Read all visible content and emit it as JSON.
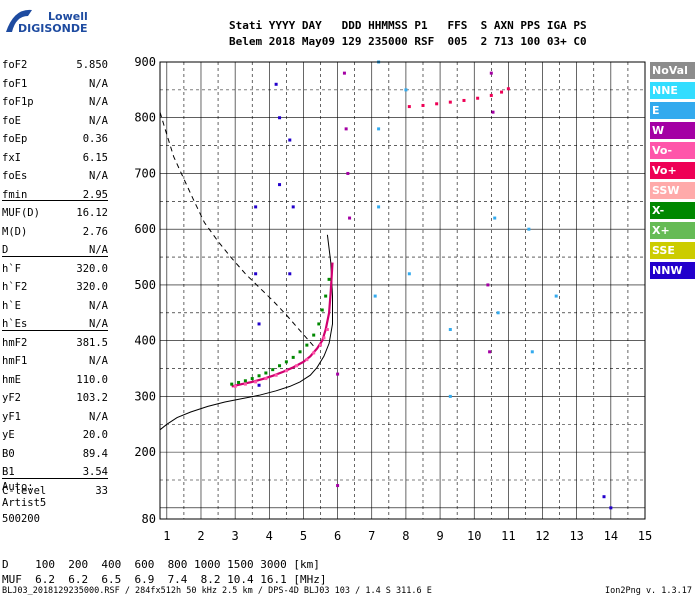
{
  "logo": {
    "line1": "Lowell",
    "line2": "DIGISONDE"
  },
  "header": {
    "row1": "Stati YYYY DAY   DDD HHMMSS P1   FFS  S AXN PPS IGA PS",
    "row2": "Belem 2018 May09 129 235000 RSF  005  2 713 100 03+ C0"
  },
  "params": [
    [
      {
        "k": "foF2",
        "v": "5.850"
      },
      {
        "k": "foF1",
        "v": "N/A"
      },
      {
        "k": "foF1p",
        "v": "N/A"
      },
      {
        "k": "foE",
        "v": "N/A"
      },
      {
        "k": "foEp",
        "v": "0.36"
      },
      {
        "k": "fxI",
        "v": "6.15"
      },
      {
        "k": "foEs",
        "v": "N/A"
      },
      {
        "k": "fmin",
        "v": "2.95"
      }
    ],
    [
      {
        "k": "MUF(D)",
        "v": "16.12"
      },
      {
        "k": "M(D)",
        "v": "2.76"
      },
      {
        "k": "D",
        "v": "N/A"
      }
    ],
    [
      {
        "k": "h`F",
        "v": "320.0"
      },
      {
        "k": "h`F2",
        "v": "320.0"
      },
      {
        "k": "h`E",
        "v": "N/A"
      },
      {
        "k": "h`Es",
        "v": "N/A"
      }
    ],
    [
      {
        "k": "hmF2",
        "v": "381.5"
      },
      {
        "k": "hmF1",
        "v": "N/A"
      },
      {
        "k": "hmE",
        "v": "110.0"
      },
      {
        "k": "yF2",
        "v": "103.2"
      },
      {
        "k": "yF1",
        "v": "N/A"
      },
      {
        "k": "yE",
        "v": "20.0"
      },
      {
        "k": "B0",
        "v": "89.4"
      },
      {
        "k": "B1",
        "v": "3.54"
      }
    ],
    [
      {
        "k": "C-level",
        "v": "33"
      }
    ]
  ],
  "footer": {
    "line1": "Auto:",
    "line2": "Artist5",
    "line3": "500200"
  },
  "legend": [
    {
      "label": "NoVal",
      "color": "#8c8c8c"
    },
    {
      "label": "NNE",
      "color": "#33ddff"
    },
    {
      "label": "E",
      "color": "#33aaee"
    },
    {
      "label": "W",
      "color": "#a400a4"
    },
    {
      "label": "Vo-",
      "color": "#ff55aa"
    },
    {
      "label": "Vo+",
      "color": "#ee0055"
    },
    {
      "label": "SSW",
      "color": "#ffaaaa"
    },
    {
      "label": "X-",
      "color": "#008800"
    },
    {
      "label": "X+",
      "color": "#66bb55"
    },
    {
      "label": "SSE",
      "color": "#cccc00"
    },
    {
      "label": "NNW",
      "color": "#2200cc"
    }
  ],
  "muf_table": {
    "row1": "D    100  200  400  600  800 1000 1500 3000 [km]",
    "row2": "MUF  6.2  6.2  6.5  6.9  7.4  8.2 10.4 16.1 [MHz]"
  },
  "fileinfo": "BLJ03_2018129235000.RSF / 284fx512h 50 kHz 2.5 km / DPS-4D BLJ03 103 / 1.4 S 311.6 E",
  "version": "Ion2Png v. 1.3.17",
  "chart_data": {
    "type": "scatter",
    "x_ticks": [
      1,
      2,
      3,
      4,
      5,
      6,
      7,
      8,
      9,
      10,
      11,
      12,
      13,
      14,
      15
    ],
    "y_ticks": [
      80,
      200,
      300,
      400,
      500,
      600,
      700,
      800,
      900
    ],
    "xlim": [
      0.8,
      15
    ],
    "ylim": [
      80,
      900
    ],
    "grid": true,
    "series": [
      {
        "name": "X-",
        "color": "#008800",
        "x": [
          2.9,
          3.1,
          3.3,
          3.5,
          3.7,
          3.9,
          4.1,
          4.3,
          4.5,
          4.7,
          4.9,
          5.1,
          5.3,
          5.45,
          5.55,
          5.65,
          5.75
        ],
        "y": [
          322,
          325,
          328,
          332,
          337,
          342,
          348,
          355,
          362,
          370,
          380,
          392,
          410,
          430,
          455,
          480,
          510
        ]
      },
      {
        "name": "Vo-",
        "color": "#ff55aa",
        "x": [
          3.0,
          3.3,
          3.6,
          3.9,
          4.2,
          4.5,
          4.8,
          5.1,
          5.3,
          5.5,
          5.6,
          5.7
        ],
        "y": [
          318,
          322,
          326,
          332,
          338,
          346,
          355,
          366,
          378,
          392,
          405,
          420
        ]
      },
      {
        "name": "Vo+",
        "color": "#ee0055",
        "x": [
          8.1,
          8.5,
          8.9,
          9.3,
          9.7,
          10.1,
          10.5,
          10.8,
          11.0
        ],
        "y": [
          820,
          822,
          825,
          828,
          831,
          835,
          840,
          846,
          852
        ]
      },
      {
        "name": "E",
        "color": "#33aaee",
        "x": [
          8.0,
          8.1,
          7.2,
          7.2,
          7.2,
          7.1,
          9.3,
          9.3,
          10.6,
          10.7,
          11.6,
          11.7,
          12.4
        ],
        "y": [
          850,
          520,
          900,
          780,
          640,
          480,
          420,
          300,
          620,
          450,
          600,
          380,
          480
        ]
      },
      {
        "name": "W",
        "color": "#a400a4",
        "x": [
          6.2,
          6.25,
          6.3,
          6.35,
          6.0,
          6.0,
          10.5,
          10.55,
          10.4,
          10.45
        ],
        "y": [
          880,
          780,
          700,
          620,
          340,
          140,
          880,
          810,
          500,
          380
        ]
      },
      {
        "name": "NNW",
        "color": "#2200cc",
        "x": [
          3.6,
          3.6,
          3.7,
          3.7,
          4.2,
          4.3,
          4.3,
          4.6,
          4.7,
          4.6,
          13.8,
          14.0
        ],
        "y": [
          640,
          520,
          430,
          320,
          860,
          800,
          680,
          760,
          640,
          520,
          120,
          100
        ]
      }
    ],
    "curves": [
      {
        "name": "profile",
        "x": [
          0.8,
          1.0,
          1.3,
          1.7,
          2.2,
          2.7,
          3.2,
          3.7,
          4.2,
          4.6,
          4.9,
          5.2,
          5.4,
          5.6,
          5.75,
          5.85,
          5.85,
          5.8,
          5.7
        ],
        "y": [
          240,
          250,
          262,
          272,
          282,
          290,
          296,
          302,
          310,
          318,
          326,
          338,
          352,
          372,
          395,
          430,
          480,
          540,
          590
        ]
      },
      {
        "name": "dashed",
        "x": [
          0.8,
          1.0,
          1.2,
          1.5,
          1.8,
          2.1,
          2.5,
          2.9,
          3.3,
          3.7,
          4.1,
          4.5,
          4.9,
          5.3
        ],
        "y": [
          810,
          770,
          730,
          690,
          650,
          612,
          578,
          548,
          520,
          496,
          472,
          446,
          418,
          390
        ]
      },
      {
        "name": "trace",
        "x": [
          2.9,
          3.2,
          3.5,
          3.8,
          4.1,
          4.4,
          4.7,
          5.0,
          5.2,
          5.4,
          5.55,
          5.65,
          5.75,
          5.8,
          5.85
        ],
        "y": [
          318,
          322,
          326,
          331,
          337,
          344,
          352,
          362,
          372,
          386,
          400,
          420,
          450,
          490,
          540
        ]
      }
    ]
  }
}
